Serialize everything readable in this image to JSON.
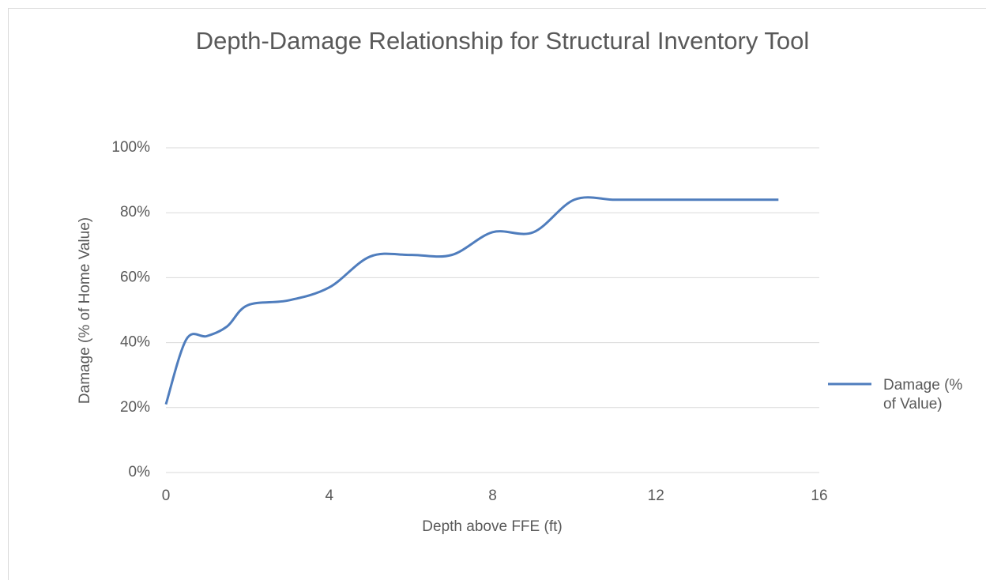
{
  "chart_data": {
    "type": "line",
    "title": "Depth-Damage Relationship for Structural Inventory Tool",
    "x_label": "Depth above FFE (ft)",
    "y_label": "Damage (% of Home Value)",
    "x": [
      0,
      0.5,
      1,
      1.5,
      2,
      3,
      4,
      5,
      6,
      7,
      8,
      9,
      10,
      11,
      12,
      13,
      14,
      15
    ],
    "series": [
      {
        "name": "Damage (% of Value)",
        "color": "#4f7dbd",
        "values": [
          21,
          41,
          42,
          45,
          51.5,
          53,
          57,
          66.5,
          67,
          67,
          74,
          74,
          84,
          84,
          84,
          84,
          84,
          84
        ]
      }
    ],
    "xlim": [
      0,
      16
    ],
    "xticks": [
      0,
      4,
      8,
      12,
      16
    ],
    "ylim": [
      0,
      100
    ],
    "yticks": [
      {
        "value": 0,
        "label": "0%"
      },
      {
        "value": 20,
        "label": "20%"
      },
      {
        "value": 40,
        "label": "40%"
      },
      {
        "value": 60,
        "label": "60%"
      },
      {
        "value": 80,
        "label": "80%"
      },
      {
        "value": 100,
        "label": "100%"
      }
    ],
    "grid": true,
    "smooth": true,
    "legend": "right"
  }
}
